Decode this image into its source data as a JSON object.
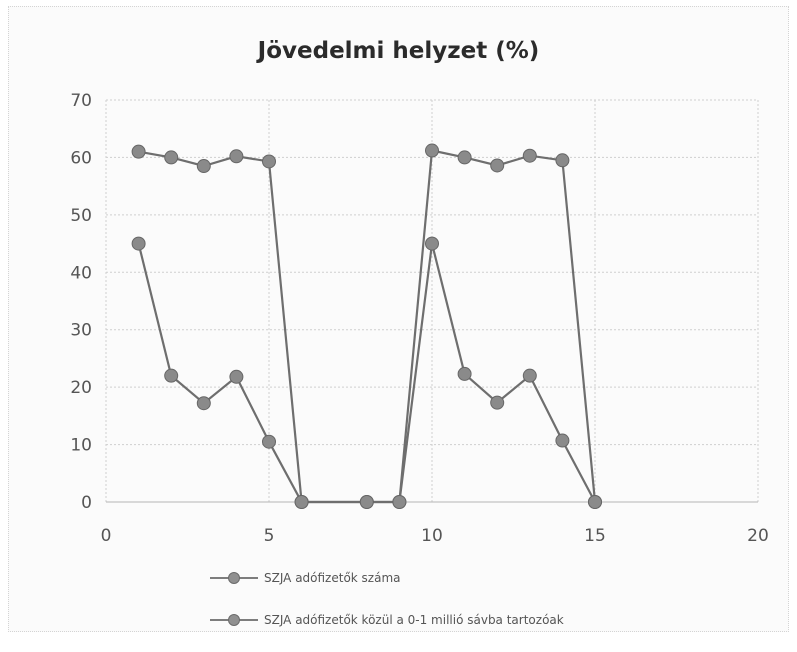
{
  "chart_data": {
    "type": "scatter",
    "title": "Jövedelmi helyzet (%)",
    "xlabel": "",
    "ylabel": "",
    "xlim": [
      0,
      20
    ],
    "ylim": [
      0,
      70
    ],
    "xticks": [
      "0",
      "5",
      "10",
      "15",
      "20"
    ],
    "yticks": [
      "0",
      "10",
      "20",
      "30",
      "40",
      "50",
      "60",
      "70"
    ],
    "grid": true,
    "legend_position": "bottom",
    "series": [
      {
        "name": "SZJA adófizetők száma",
        "color": "#8a8a8a",
        "points": [
          [
            1,
            61
          ],
          [
            2,
            60
          ],
          [
            3,
            58.5
          ],
          [
            4,
            60.2
          ],
          [
            5,
            59.3
          ],
          [
            6,
            0
          ],
          [
            8,
            0
          ],
          [
            9,
            0
          ],
          [
            10,
            61.2
          ],
          [
            11,
            60
          ],
          [
            12,
            58.6
          ],
          [
            13,
            60.3
          ],
          [
            14,
            59.5
          ],
          [
            15,
            0
          ]
        ]
      },
      {
        "name": "SZJA adófizetők közül a 0-1 millió sávba tartozóak",
        "color": "#8a8a8a",
        "points": [
          [
            1,
            45
          ],
          [
            2,
            22
          ],
          [
            3,
            17.2
          ],
          [
            4,
            21.8
          ],
          [
            5,
            10.5
          ],
          [
            6,
            0
          ],
          [
            8,
            0
          ],
          [
            9,
            0
          ],
          [
            10,
            45
          ],
          [
            11,
            22.3
          ],
          [
            12,
            17.3
          ],
          [
            13,
            22
          ],
          [
            14,
            10.7
          ],
          [
            15,
            0
          ]
        ]
      }
    ]
  }
}
